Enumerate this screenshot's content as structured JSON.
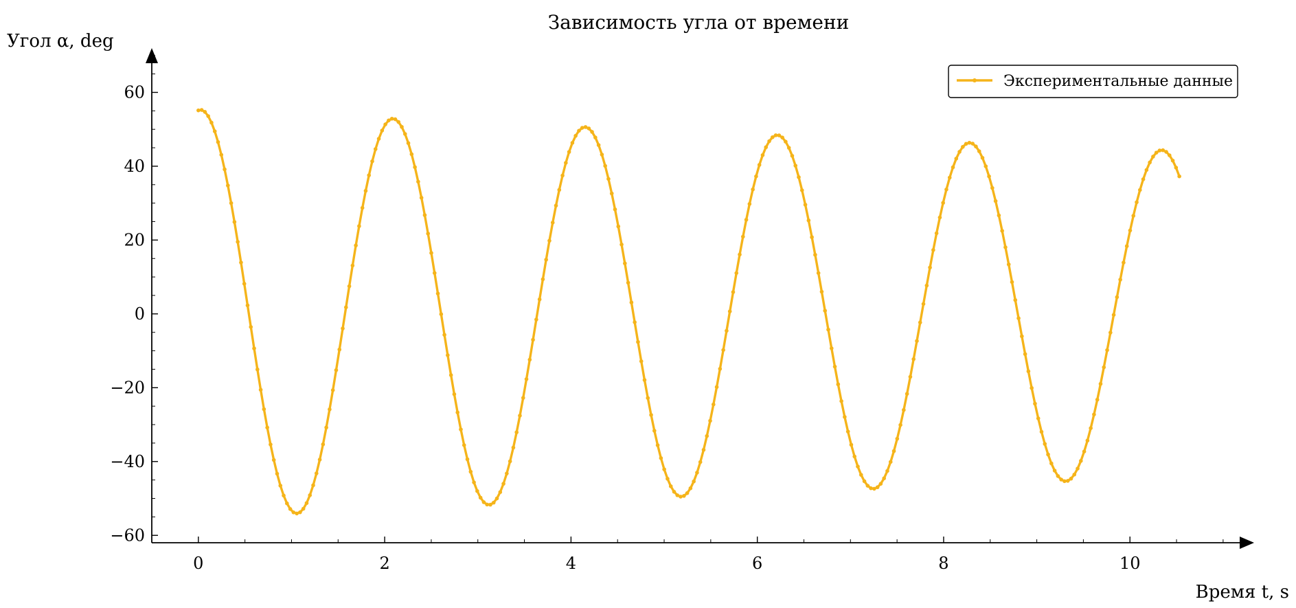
{
  "chart_data": {
    "type": "line",
    "title": "Зависимость угла от времени",
    "xlabel": "Время t, s",
    "ylabel": "Угол α, deg",
    "xlim": [
      -0.5,
      11.2
    ],
    "ylim": [
      -62,
      72
    ],
    "x_ticks": [
      0,
      2,
      4,
      6,
      8,
      10
    ],
    "y_ticks": [
      -60,
      -40,
      -20,
      0,
      20,
      40,
      60
    ],
    "x_tick_labels": [
      "0",
      "2",
      "4",
      "6",
      "8",
      "10"
    ],
    "y_tick_labels": [
      "−60",
      "−40",
      "−20",
      "0",
      "20",
      "40",
      "60"
    ],
    "grid": false,
    "legend": {
      "position": "top-right",
      "entries": [
        "Экспериментальные данные"
      ]
    },
    "series": [
      {
        "name": "Экспериментальные данные",
        "color": "#f5b41a",
        "marker": "dot",
        "model": {
          "formula": "A0*exp(-gamma*t)*cos(omega*t + phi)",
          "A0": 55.3,
          "gamma": 0.0213,
          "omega": 3.045,
          "phi": -0.08,
          "t_start": 0,
          "t_end": 10.53,
          "n_points": 300
        }
      }
    ]
  }
}
